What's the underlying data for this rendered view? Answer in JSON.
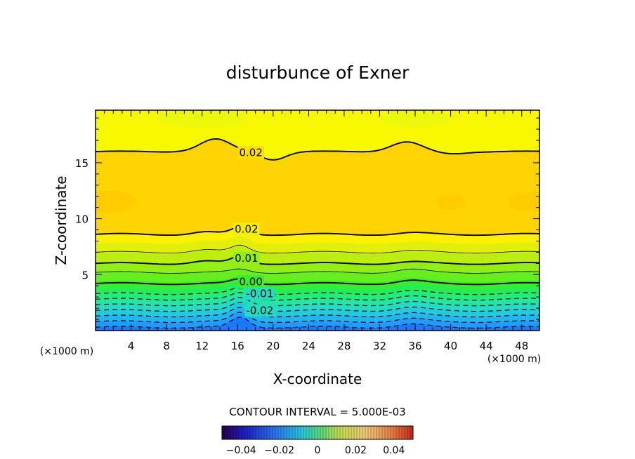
{
  "chart_data": {
    "type": "contour",
    "title": "disturbunce of Exner",
    "xlabel": "X-coordinate",
    "ylabel": "Z-coordinate",
    "x_unit_label": "(×1000 m)",
    "z_unit_label": "(×1000 m)",
    "xlim": [
      0,
      50
    ],
    "ylim": [
      0,
      19.7
    ],
    "xticks": [
      4,
      8,
      12,
      16,
      20,
      24,
      28,
      32,
      36,
      40,
      44,
      48
    ],
    "yticks": [
      5,
      10,
      15
    ],
    "contour_interval_text": "CONTOUR INTERVAL = 5.000E-03",
    "colorbar": {
      "range": [
        -0.05,
        0.05
      ],
      "ticks": [
        "-0.04",
        "-0.02",
        "0",
        "0.02",
        "0.04"
      ]
    },
    "color_levels": [
      {
        "z_top": 0.3,
        "color": "#1a78ff"
      },
      {
        "z_top": 0.8,
        "color": "#1e9cff"
      },
      {
        "z_top": 1.3,
        "color": "#20b6ee"
      },
      {
        "z_top": 1.8,
        "color": "#22cce0"
      },
      {
        "z_top": 2.3,
        "color": "#22dcc4"
      },
      {
        "z_top": 2.8,
        "color": "#22e6a2"
      },
      {
        "z_top": 3.3,
        "color": "#22ec7a"
      },
      {
        "z_top": 3.8,
        "color": "#24ee52"
      },
      {
        "z_top": 4.4,
        "color": "#36ee2e"
      },
      {
        "z_top": 5.2,
        "color": "#66ee1e"
      },
      {
        "z_top": 6.0,
        "color": "#92ee14"
      },
      {
        "z_top": 6.9,
        "color": "#bcee10"
      },
      {
        "z_top": 7.8,
        "color": "#e0f00a"
      },
      {
        "z_top": 8.6,
        "color": "#fdf000"
      },
      {
        "z_top": 16.0,
        "color": "#ffd400"
      },
      {
        "z_top": 19.7,
        "color": "#f8f800"
      }
    ],
    "contour_lines": [
      {
        "level": -0.035,
        "z": 0.3,
        "style": "dashed"
      },
      {
        "level": -0.03,
        "z": 0.8,
        "style": "dashed"
      },
      {
        "level": -0.025,
        "z": 1.3,
        "style": "dashed"
      },
      {
        "level": -0.02,
        "z": 1.8,
        "style": "dashed",
        "label": "-0.02",
        "label_x": 18.5
      },
      {
        "level": -0.015,
        "z": 2.3,
        "style": "dashed"
      },
      {
        "level": -0.01,
        "z": 2.8,
        "style": "dashed"
      },
      {
        "level": -0.005,
        "z": 3.3,
        "style": "dashed",
        "label": "-0.01",
        "label_x": 18.5
      },
      {
        "level": 0.0,
        "z": 4.2,
        "style": "thick",
        "label": "0.00",
        "label_x": 17.5
      },
      {
        "level": 0.005,
        "z": 5.2,
        "style": "thin"
      },
      {
        "level": 0.01,
        "z": 6.0,
        "style": "thick",
        "label": "0.01",
        "label_x": 17.0
      },
      {
        "level": 0.015,
        "z": 7.0,
        "style": "thin"
      },
      {
        "level": 0.02,
        "z": 8.6,
        "style": "thick",
        "label": "0.02",
        "label_x": 17.0
      },
      {
        "level": 0.02,
        "z": 16.0,
        "style": "thick",
        "label": "0.02",
        "label_x": 17.5
      }
    ]
  }
}
